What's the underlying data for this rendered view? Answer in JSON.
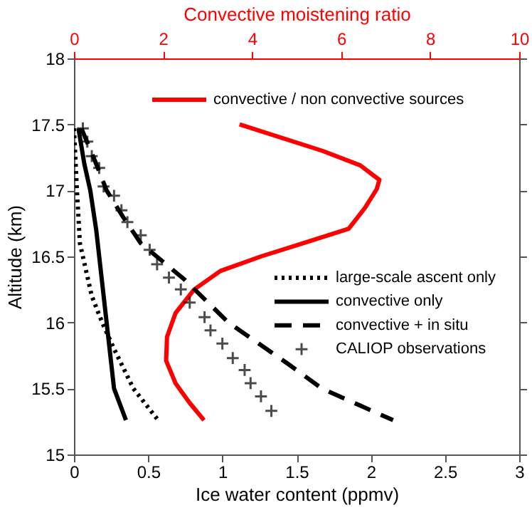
{
  "chart_data": {
    "type": "line",
    "xlabel": "Ice water content (ppmv)",
    "x2label": "Convective moistening ratio",
    "ylabel": "Altitude (km)",
    "xlim": [
      0,
      3
    ],
    "xticks": [
      0,
      0.5,
      1,
      1.5,
      2,
      2.5,
      3
    ],
    "x2lim": [
      0,
      10
    ],
    "x2ticks": [
      0,
      2,
      4,
      6,
      8,
      10
    ],
    "ylim": [
      15,
      18
    ],
    "yticks": [
      15,
      15.5,
      16,
      16.5,
      17,
      17.5,
      18
    ],
    "grid": false,
    "legend": "right",
    "series": [
      {
        "name": "convective / non convective sources",
        "color": "#ff0000",
        "axis": "x2",
        "line_style": "solid",
        "x": [
          3.72,
          5.58,
          6.43,
          6.86,
          6.8,
          6.54,
          6.17,
          5.15,
          4.2,
          3.29,
          2.7,
          2.28,
          2.09,
          2.07,
          2.28,
          2.6,
          2.92
        ],
        "values": [
          17.5,
          17.3,
          17.19,
          17.08,
          17.01,
          16.87,
          16.71,
          16.6,
          16.5,
          16.39,
          16.25,
          16.07,
          15.89,
          15.71,
          15.54,
          15.39,
          15.26
        ]
      },
      {
        "name": "large-scale ascent only",
        "color": "#000000",
        "line_style": "dotted",
        "x": [
          0.0,
          0.02,
          0.04,
          0.12,
          0.19,
          0.27,
          0.4,
          0.56
        ],
        "values": [
          17.47,
          17.0,
          16.6,
          16.2,
          16.0,
          15.8,
          15.5,
          15.27
        ]
      },
      {
        "name": "convective only",
        "color": "#000000",
        "line_style": "solid",
        "x": [
          0.03,
          0.07,
          0.11,
          0.15,
          0.17,
          0.22,
          0.27,
          0.35
        ],
        "values": [
          17.47,
          17.2,
          17.0,
          16.7,
          16.5,
          16.0,
          15.5,
          15.26
        ]
      },
      {
        "name": "convective + in situ",
        "color": "#000000",
        "line_style": "dashed",
        "x": [
          0.05,
          0.15,
          0.22,
          0.33,
          0.45,
          0.75,
          1.04,
          1.45,
          1.67,
          2.15
        ],
        "values": [
          17.47,
          17.2,
          17.0,
          16.8,
          16.6,
          16.32,
          16.0,
          15.68,
          15.5,
          15.26
        ]
      },
      {
        "name": "CALIOP observations",
        "color": "#000000",
        "type": "scatter",
        "marker": "cross",
        "x": [
          0.06,
          0.09,
          0.12,
          0.17,
          0.2,
          0.27,
          0.32,
          0.36,
          0.45,
          0.51,
          0.56,
          0.64,
          0.72,
          0.78,
          0.88,
          0.92,
          1.0,
          1.07,
          1.15,
          1.19,
          1.26,
          1.33
        ],
        "values": [
          17.47,
          17.37,
          17.26,
          17.17,
          17.03,
          16.96,
          16.85,
          16.76,
          16.66,
          16.55,
          16.44,
          16.34,
          16.25,
          16.15,
          16.04,
          15.94,
          15.84,
          15.73,
          15.64,
          15.54,
          15.44,
          15.33
        ]
      }
    ]
  }
}
